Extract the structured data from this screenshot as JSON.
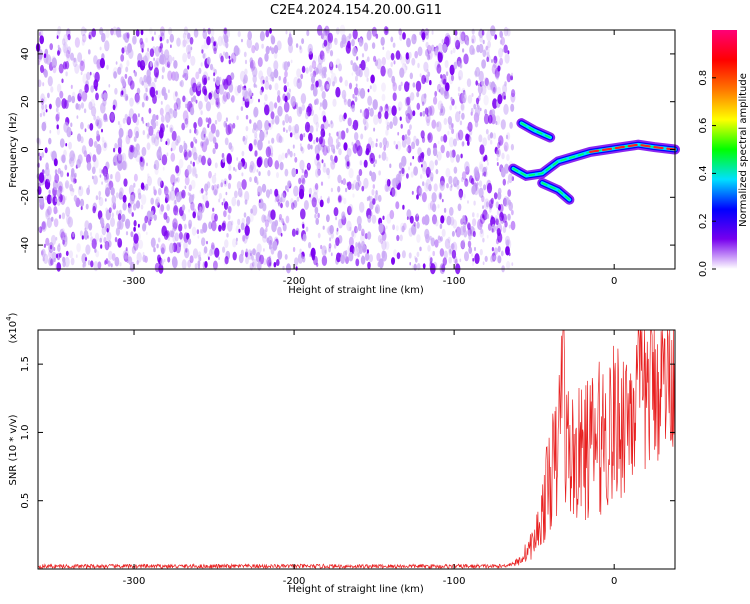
{
  "title": "C2E4.2024.154.20.00.G11",
  "chart_data": [
    {
      "type": "heatmap",
      "xlabel": "Height of straight line (km)",
      "ylabel": "Frequency (Hz)",
      "xlim": [
        -360,
        38
      ],
      "ylim": [
        -50,
        50
      ],
      "xticks": [
        -300,
        -200,
        -100,
        0
      ],
      "yticks": [
        -40,
        -20,
        0,
        20,
        40
      ],
      "colorbar": {
        "label": "Normalized spectral amplitude",
        "range": [
          0,
          1
        ],
        "ticks": [
          0.0,
          0.2,
          0.4,
          0.6,
          0.8
        ],
        "colors": [
          "#ffffff",
          "#7700ee",
          "#0000ff",
          "#00e0ff",
          "#00ff00",
          "#ffff00",
          "#ff7700",
          "#ff0000",
          "#ff0077"
        ]
      },
      "noise_region": {
        "x_range": [
          -360,
          -63
        ],
        "amplitude": 0.2,
        "color": "#7a00f0"
      },
      "signal_track": [
        {
          "x": -63,
          "freq": -8
        },
        {
          "x": -55,
          "freq": -11
        },
        {
          "x": -45,
          "freq": -10
        },
        {
          "x": -35,
          "freq": -5
        },
        {
          "x": -25,
          "freq": -3
        },
        {
          "x": -15,
          "freq": -1
        },
        {
          "x": -5,
          "freq": 0
        },
        {
          "x": 5,
          "freq": 1
        },
        {
          "x": 15,
          "freq": 2
        },
        {
          "x": 25,
          "freq": 1
        },
        {
          "x": 38,
          "freq": 0
        }
      ],
      "signal_branches": [
        [
          {
            "x": -58,
            "freq": 11
          },
          {
            "x": -50,
            "freq": 8
          },
          {
            "x": -40,
            "freq": 5
          }
        ],
        [
          {
            "x": -45,
            "freq": -14
          },
          {
            "x": -35,
            "freq": -17
          },
          {
            "x": -28,
            "freq": -21
          }
        ]
      ]
    },
    {
      "type": "line",
      "xlabel": "Height of straight line (km)",
      "ylabel": "SNR (10 * v/v)",
      "scale_label": "(x10",
      "scale_exponent": "4",
      "scale_suffix": ")",
      "xlim": [
        -360,
        38
      ],
      "ylim": [
        0,
        17500
      ],
      "xticks": [
        -300,
        -200,
        -100,
        0
      ],
      "yticks": [
        5000,
        10000,
        15000
      ],
      "ytick_labels": [
        "0.5",
        "1.0",
        "1.5"
      ],
      "line_color": "#e82020",
      "series": [
        {
          "x": [
            -360,
            -70,
            -60,
            -50,
            -45,
            -40,
            -35,
            -32,
            -30,
            -25,
            -20,
            -15,
            -10,
            -5,
            0,
            5,
            10,
            15,
            20,
            25,
            30,
            38
          ],
          "y": [
            200,
            200,
            500,
            2000,
            4000,
            7000,
            8000,
            17500,
            9000,
            8000,
            8500,
            9000,
            9500,
            10000,
            10500,
            11000,
            12000,
            12500,
            13000,
            13500,
            14000,
            15000
          ]
        }
      ]
    }
  ]
}
